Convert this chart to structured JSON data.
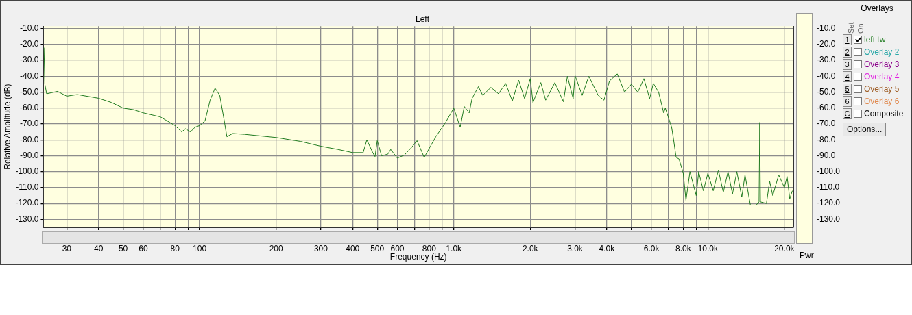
{
  "chart_data": {
    "type": "line",
    "title": "Left",
    "xlabel": "Frequency (Hz)",
    "ylabel": "Relative Amplitude (dB)",
    "legend": "right",
    "legend_title": "Overlays",
    "log": "x",
    "grid": true,
    "marker": "none",
    "line_style": "solid",
    "xlim": [
      24.3,
      21700
    ],
    "xticks": [
      30,
      40,
      50,
      60,
      {
        "value": 70,
        "label": null
      },
      80,
      {
        "value": 90,
        "label": null
      },
      100,
      200,
      300,
      400,
      500,
      600,
      {
        "value": 700,
        "label": null
      },
      800,
      {
        "value": 900,
        "label": null
      },
      {
        "value": 1000,
        "label": "1.0k"
      },
      {
        "value": 2000,
        "label": "2.0k"
      },
      {
        "value": 3000,
        "label": "3.0k"
      },
      {
        "value": 4000,
        "label": "4.0k"
      },
      {
        "value": 5000,
        "label": null
      },
      {
        "value": 6000,
        "label": "6.0k"
      },
      {
        "value": 7000,
        "label": null
      },
      {
        "value": 8000,
        "label": "8.0k"
      },
      {
        "value": 9000,
        "label": null
      },
      {
        "value": 10000,
        "label": "10.0k"
      },
      {
        "value": 20000,
        "label": "20.0k"
      }
    ],
    "ylim": [
      -135,
      -8.5
    ],
    "yticks": [
      {
        "value": -10,
        "label": "-10.0"
      },
      {
        "value": -20,
        "label": "-20.0"
      },
      {
        "value": -30,
        "label": "-30.0"
      },
      {
        "value": -40,
        "label": "-40.0"
      },
      {
        "value": -50,
        "label": "-50.0"
      },
      {
        "value": -60,
        "label": "-60.0"
      },
      {
        "value": -70,
        "label": "-70.0"
      },
      {
        "value": -80,
        "label": "-80.0"
      },
      {
        "value": -90,
        "label": "-90.0"
      },
      {
        "value": -100,
        "label": "-100.0"
      },
      {
        "value": -110,
        "label": "-110.0"
      },
      {
        "value": -120,
        "label": "-120.0"
      },
      {
        "value": -130,
        "label": "-130.0"
      }
    ],
    "y2lim": [
      -135,
      -8.5
    ],
    "y2ticks": [
      {
        "value": -10,
        "label": "-10.0"
      },
      {
        "value": -20,
        "label": "-20.0"
      },
      {
        "value": -30,
        "label": "-30.0"
      },
      {
        "value": -40,
        "label": "-40.0"
      },
      {
        "value": -50,
        "label": "-50.0"
      },
      {
        "value": -60,
        "label": "-60.0"
      },
      {
        "value": -70,
        "label": "-70.0"
      },
      {
        "value": -80,
        "label": "-80.0"
      },
      {
        "value": -90,
        "label": "-90.0"
      },
      {
        "value": -100,
        "label": "-100.0"
      },
      {
        "value": -110,
        "label": "-110.0"
      },
      {
        "value": -120,
        "label": "-120.0"
      },
      {
        "value": -130,
        "label": "-130.0"
      }
    ],
    "annotations": [
      "Set",
      "On",
      "1",
      "2",
      "Overlay 2",
      "3",
      "Overlay 3",
      "4",
      "Overlay 4",
      "5",
      "Overlay 5",
      "6",
      "Overlay 6",
      "C",
      "Composite",
      "Options...",
      "Pwr"
    ],
    "series": [
      {
        "name": "left tw",
        "color": "#1f7a1f",
        "x": [
          24.4,
          24.6,
          25,
          27.6,
          30,
          33,
          40,
          45,
          50,
          55,
          60,
          70,
          80,
          85,
          88,
          92,
          96,
          100,
          105,
          110,
          115,
          120,
          125,
          128,
          135,
          150,
          200,
          250,
          300,
          350,
          400,
          440,
          455,
          480,
          490,
          500,
          520,
          550,
          565,
          600,
          640,
          680,
          717,
          765,
          850,
          929,
          1000,
          1060,
          1100,
          1150,
          1180,
          1250,
          1300,
          1400,
          1500,
          1600,
          1700,
          1800,
          1900,
          2000,
          2050,
          2200,
          2300,
          2500,
          2700,
          2800,
          2950,
          3000,
          3200,
          3400,
          3700,
          3900,
          4100,
          4400,
          4700,
          5000,
          5300,
          5600,
          5900,
          6100,
          6400,
          6700,
          6800,
          7200,
          7300,
          7500,
          7700,
          8000,
          8200,
          8500,
          9000,
          9200,
          9600,
          10000,
          10500,
          11000,
          11500,
          12000,
          12500,
          13000,
          13600,
          14000,
          14700,
          15500,
          15900,
          16000,
          16100,
          17000,
          17500,
          18000,
          19000,
          20000,
          20500,
          21000,
          21500
        ],
        "values": [
          -22,
          -45,
          -51,
          -49.5,
          -52.5,
          -51.5,
          -53.8,
          -56.5,
          -60,
          -61,
          -63,
          -65.5,
          -71,
          -75,
          -73,
          -75,
          -72,
          -71,
          -68,
          -55,
          -47.5,
          -52,
          -68,
          -78,
          -76,
          -76.5,
          -78.5,
          -81,
          -84,
          -86,
          -88,
          -88,
          -80,
          -88,
          -90.5,
          -80.5,
          -90,
          -89,
          -86,
          -91.5,
          -89.5,
          -85,
          -80.5,
          -91,
          -78,
          -69,
          -60,
          -72,
          -59,
          -63,
          -54,
          -46.5,
          -52,
          -47,
          -51,
          -44.5,
          -55.5,
          -42.5,
          -54,
          -41.5,
          -56.5,
          -44,
          -55,
          -44,
          -56,
          -40,
          -54,
          -39.5,
          -52,
          -40,
          -52,
          -55,
          -43,
          -38.5,
          -50,
          -45,
          -50,
          -41.5,
          -54,
          -44.5,
          -50,
          -63,
          -60,
          -72,
          -78,
          -91,
          -92,
          -101,
          -118,
          -100,
          -115,
          -100,
          -112,
          -101,
          -112,
          -99,
          -113,
          -100,
          -114,
          -100,
          -116,
          -102,
          -121,
          -121,
          -119,
          -69,
          -119,
          -120,
          -106,
          -115,
          -102,
          -110,
          -103,
          -117,
          -112
        ]
      }
    ]
  }
}
